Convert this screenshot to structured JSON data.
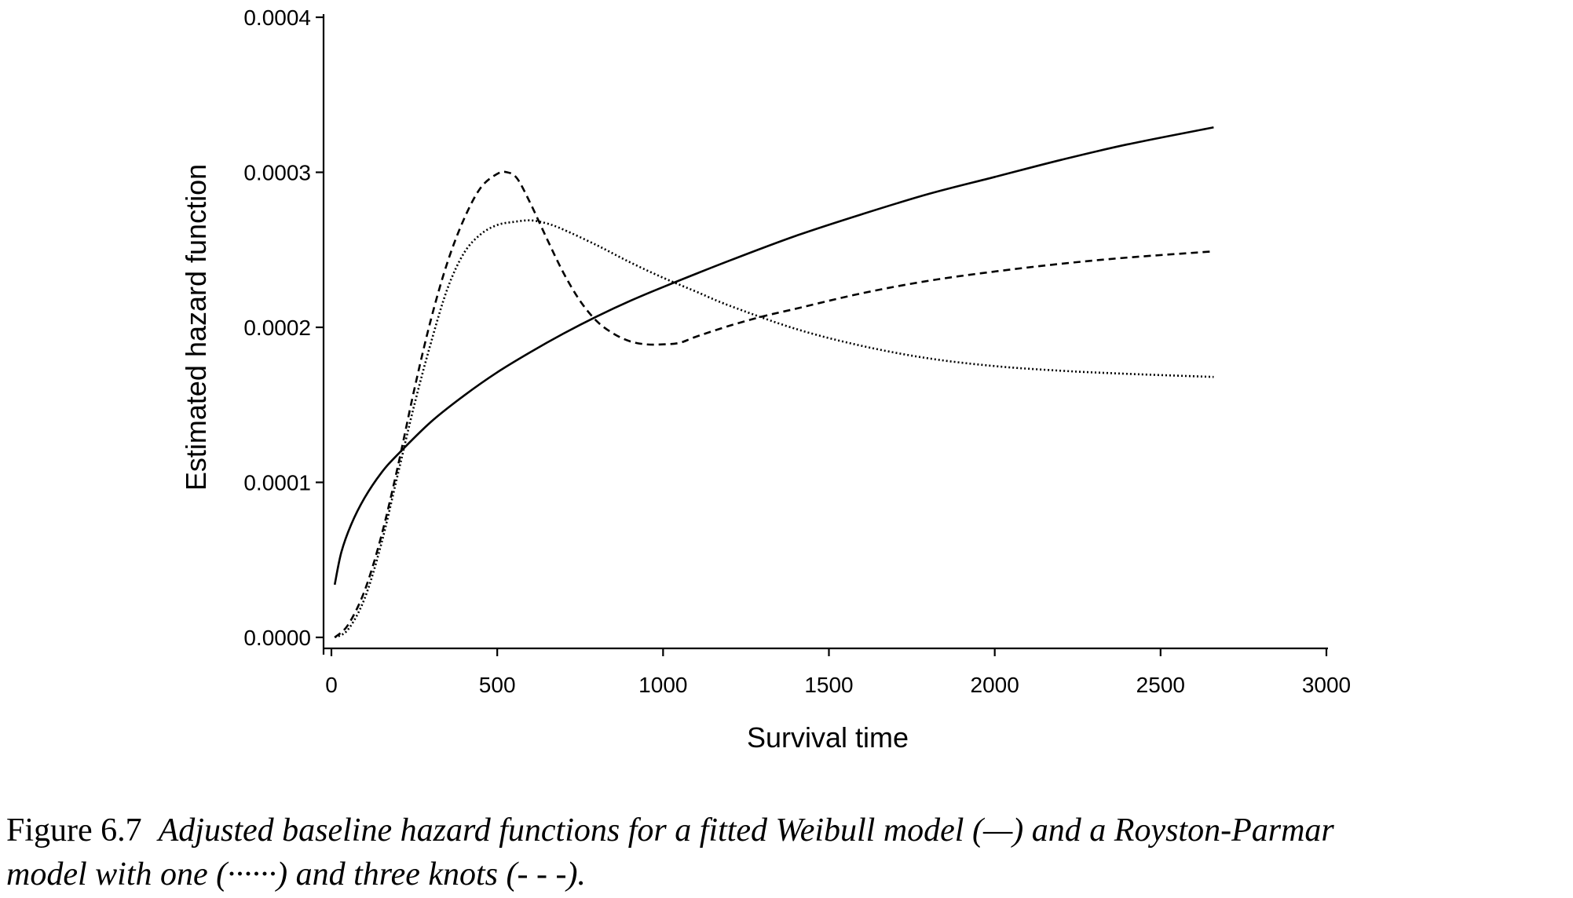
{
  "chart_data": {
    "type": "line",
    "xlabel": "Survival time",
    "ylabel": "Estimated hazard function",
    "xlim": [
      0,
      3000
    ],
    "ylim": [
      0,
      0.0004
    ],
    "xticks": [
      "0",
      "500",
      "1000",
      "1500",
      "2000",
      "2500",
      "3000"
    ],
    "yticks": [
      "0.0000",
      "0.0001",
      "0.0002",
      "0.0003",
      "0.0004"
    ],
    "grid": false,
    "legend": "none",
    "series": [
      {
        "style": "solid",
        "x": [
          10,
          30,
          60,
          100,
          150,
          200,
          300,
          400,
          500,
          600,
          700,
          800,
          900,
          1000,
          1200,
          1400,
          1600,
          1800,
          2000,
          2200,
          2400,
          2660
        ],
        "y": [
          3.4e-05,
          5.5e-05,
          7.3e-05,
          9e-05,
          0.000106,
          0.000118,
          0.000139,
          0.000156,
          0.000171,
          0.000184,
          0.000196,
          0.000207,
          0.000217,
          0.000226,
          0.000243,
          0.000259,
          0.000273,
          0.000286,
          0.000297,
          0.000308,
          0.000318,
          0.000329
        ]
      },
      {
        "style": "dotted",
        "x": [
          10,
          50,
          100,
          150,
          200,
          250,
          300,
          350,
          400,
          450,
          500,
          550,
          600,
          650,
          700,
          800,
          900,
          1000,
          1100,
          1200,
          1400,
          1600,
          1800,
          2000,
          2200,
          2400,
          2660
        ],
        "y": [
          0.0,
          5e-06,
          2.5e-05,
          6e-05,
          0.000105,
          0.00015,
          0.00019,
          0.000225,
          0.000248,
          0.00026,
          0.000266,
          0.000268,
          0.000269,
          0.000267,
          0.000263,
          0.000253,
          0.000242,
          0.000232,
          0.000223,
          0.000214,
          0.000199,
          0.000188,
          0.00018,
          0.000175,
          0.000172,
          0.00017,
          0.000168
        ]
      },
      {
        "style": "dashed",
        "x": [
          10,
          50,
          100,
          150,
          200,
          250,
          300,
          350,
          400,
          450,
          500,
          530,
          560,
          600,
          650,
          700,
          750,
          800,
          850,
          900,
          950,
          1000,
          1050,
          1100,
          1200,
          1300,
          1400,
          1600,
          1800,
          2000,
          2200,
          2400,
          2660
        ],
        "y": [
          0.0,
          8e-06,
          3e-05,
          6.5e-05,
          0.00011,
          0.00016,
          0.000205,
          0.000242,
          0.00027,
          0.00029,
          0.000299,
          0.0003,
          0.000296,
          0.00028,
          0.000257,
          0.000235,
          0.000217,
          0.000204,
          0.000196,
          0.000191,
          0.000189,
          0.000189,
          0.00019,
          0.000194,
          0.000201,
          0.000207,
          0.000212,
          0.000222,
          0.00023,
          0.000236,
          0.000241,
          0.000245,
          0.000249
        ]
      }
    ]
  },
  "caption": {
    "number": "Figure 6.7",
    "line1": "Adjusted baseline hazard functions for a fitted Weibull model (—) and a Royston-Parmar",
    "line2": "model with one (······) and three knots (- - -)."
  }
}
